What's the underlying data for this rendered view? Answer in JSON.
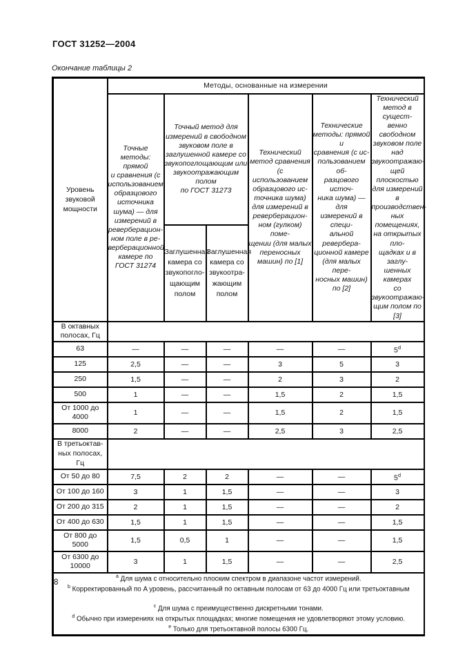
{
  "page": {
    "doc_number": "ГОСТ 31252—2004",
    "table_caption": "Окончание таблицы 2",
    "page_number": "8"
  },
  "table": {
    "col1_header": "Уровень\nзвуковой\nмощности",
    "band_header": "Методы, основанные на измерении",
    "method_headers": {
      "col2": "Точные\nметоды: прямой\nи сравнения (с\nиспользованием\nобразцового\nисточника\nшума) — для\nизмерений в\nреверберацион-\nном поле в ре-\nверберационной\nкамере по\nГОСТ 31274",
      "span34": "Точный метод для\nизмерений в свободном\nзвуковом поле в\nзаглушенной камере со\nзвукопоглощающим или\nзвукоотражающим полом\nпо ГОСТ 31273",
      "col3": "Заглушенная\nкамера со\nзвукопогло-\nщающим\nполом",
      "col4": "Заглушенная\nкамера со\nзвукоотра-\nжающим\nполом",
      "col5": "Технический\nметод сравнения\n(с использованием\nобразцового ис-\nточника шума)\nдля измерений в\nреверберацион-\nном (гулком) поме-\nщении (для малых\nпереносных\nмашин) по [1]",
      "col6": "Технические\nметоды: прямой и\nсравнения (с ис-\nпользованием об-\nразцового источ-\nника шума) — для\nизмерений в специ-\nальной ревербера-\nционной камере\n(для малых пере-\nносных машин)\nпо [2]",
      "col7": "Технический\nметод в сущест-\nвенно свободном\nзвуковом поле над\nзвукоотражаю-\nщей плоскостью\nдля измерений в\nпроизводствен-\nных помещениях,\nна открытых пло-\nщадках и в заглу-\nшенных камерах\nсо звукоотражаю-\nщим полом по [3]"
    },
    "sections": [
      {
        "label": "В октавных\nполосах, Гц",
        "rows": [
          {
            "label": "63",
            "values": [
              "—",
              "—",
              "—",
              "—",
              "—",
              "5^d"
            ]
          },
          {
            "label": "125",
            "values": [
              "2,5",
              "—",
              "—",
              "3",
              "5",
              "3"
            ]
          },
          {
            "label": "250",
            "values": [
              "1,5",
              "—",
              "—",
              "2",
              "3",
              "2"
            ]
          },
          {
            "label": "500",
            "values": [
              "1",
              "—",
              "—",
              "1,5",
              "2",
              "1,5"
            ]
          },
          {
            "label": "От 1000 до\n4000",
            "values": [
              "1",
              "—",
              "—",
              "1,5",
              "2",
              "1,5"
            ]
          },
          {
            "label": "8000",
            "values": [
              "2",
              "—",
              "—",
              "2,5",
              "3",
              "2,5"
            ]
          }
        ]
      },
      {
        "label": "В третьоктав-\nных полосах,\nГц",
        "rows": [
          {
            "label": "От 50 до 80",
            "values": [
              "7,5",
              "2",
              "2",
              "—",
              "—",
              "5^d"
            ]
          },
          {
            "label": "От 100 до 160",
            "values": [
              "3",
              "1",
              "1,5",
              "—",
              "—",
              "3"
            ]
          },
          {
            "label": "От 200 до 315",
            "values": [
              "2",
              "1",
              "1,5",
              "—",
              "—",
              "2"
            ]
          },
          {
            "label": "От 400 до 630",
            "values": [
              "1,5",
              "1",
              "1,5",
              "—",
              "—",
              "1,5"
            ]
          },
          {
            "label": "От 800 до\n5000",
            "values": [
              "1,5",
              "0,5",
              "1",
              "—",
              "—",
              "1,5"
            ]
          },
          {
            "label": "От 6300 до\n10000",
            "values": [
              "3",
              "1",
              "1,5",
              "—",
              "—",
              "2,5"
            ]
          }
        ]
      }
    ],
    "footnotes": [
      {
        "marker": "a",
        "text": "Для шума с относительно плоским спектром в диапазоне частот измерений."
      },
      {
        "marker": "b",
        "text": "Корректированный по A уровень, рассчитанный по октавным полосам от 63 до 4000 Гц или третьоктавным"
      },
      {
        "marker": "",
        "text": ""
      },
      {
        "marker": "c",
        "text": "Для шума с преимущественно дискретными тонами."
      },
      {
        "marker": "d",
        "text": "Обычно при измерениях на открытых площадках; многие помещения не удовлетворяют этому условию."
      },
      {
        "marker": "e",
        "text": "Только для третьоктавной полосы 6300 Гц."
      }
    ]
  }
}
